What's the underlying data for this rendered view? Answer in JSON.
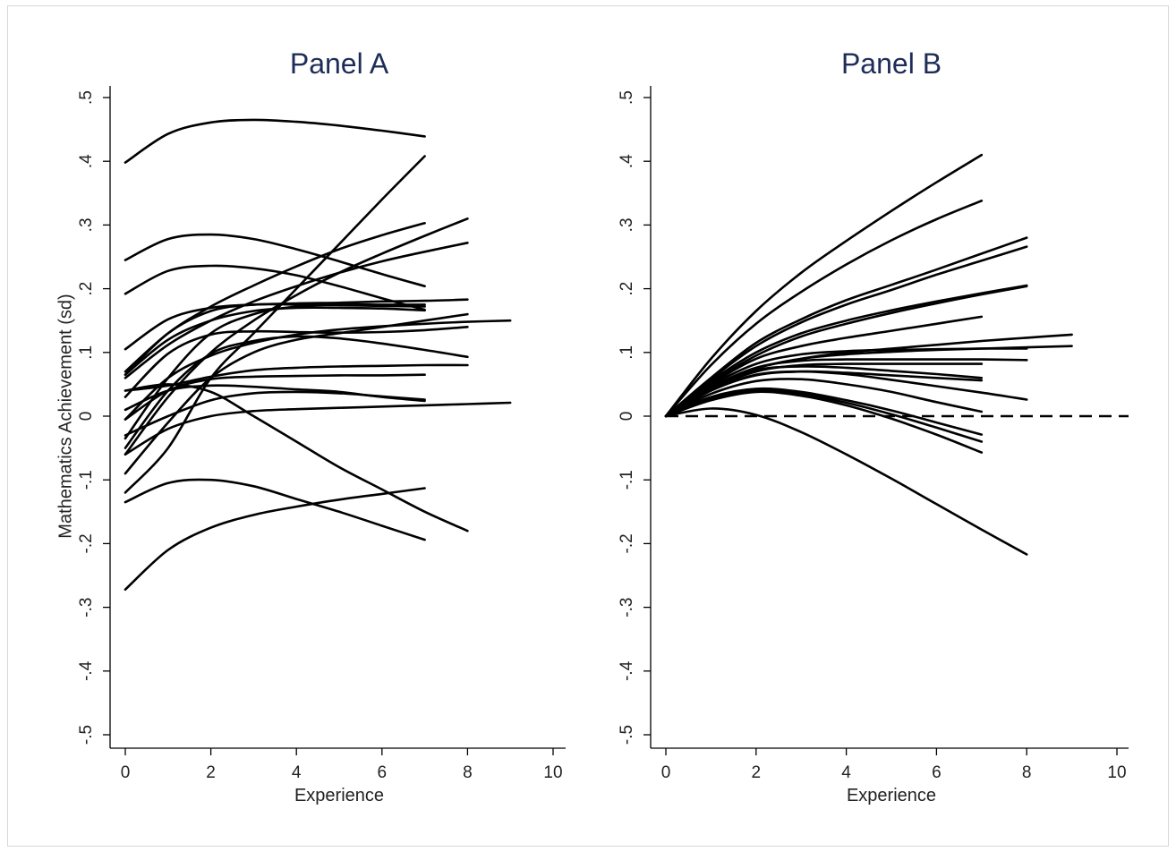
{
  "figure": {
    "background": "#ffffff"
  },
  "chart_data": [
    {
      "type": "line",
      "title": "Panel A",
      "xlabel": "Experience",
      "ylabel": "Mathematics Achievement (sd)",
      "xlim": [
        0,
        10
      ],
      "ylim": [
        -0.5,
        0.5
      ],
      "xticks": [
        0,
        2,
        4,
        6,
        8,
        10
      ],
      "yticks": [
        -0.5,
        -0.4,
        -0.3,
        -0.2,
        -0.1,
        0,
        0.1,
        0.2,
        0.3,
        0.4,
        0.5
      ],
      "ytick_labels": [
        "-.5",
        "-.4",
        "-.3",
        "-.2",
        "-.1",
        "0",
        ".1",
        ".2",
        ".3",
        ".4",
        ".5"
      ],
      "line_color": "#000000",
      "series": [
        {
          "x": [
            0,
            1,
            2,
            3,
            4,
            5,
            6,
            7
          ],
          "y": [
            0.398,
            0.443,
            0.461,
            0.465,
            0.462,
            0.456,
            0.448,
            0.439
          ]
        },
        {
          "x": [
            0,
            1,
            2,
            3,
            4,
            5,
            6,
            7
          ],
          "y": [
            0.245,
            0.278,
            0.285,
            0.278,
            0.262,
            0.243,
            0.223,
            0.204
          ]
        },
        {
          "x": [
            0,
            1,
            2,
            3,
            4,
            5,
            6,
            7
          ],
          "y": [
            0.192,
            0.228,
            0.236,
            0.232,
            0.221,
            0.204,
            0.185,
            0.167
          ]
        },
        {
          "x": [
            0,
            1,
            2,
            3,
            4,
            5,
            6,
            7
          ],
          "y": [
            -0.12,
            -0.05,
            0.06,
            0.13,
            0.2,
            0.27,
            0.34,
            0.408
          ]
        },
        {
          "x": [
            0,
            1,
            2,
            3,
            4,
            5,
            6,
            7,
            8
          ],
          "y": [
            -0.06,
            0.03,
            0.1,
            0.15,
            0.19,
            0.225,
            0.255,
            0.283,
            0.31
          ]
        },
        {
          "x": [
            0,
            1,
            2,
            3,
            4,
            5,
            6,
            7
          ],
          "y": [
            0.07,
            0.13,
            0.172,
            0.205,
            0.235,
            0.262,
            0.284,
            0.303
          ]
        },
        {
          "x": [
            0,
            1,
            2,
            3,
            4,
            5,
            6,
            7,
            8
          ],
          "y": [
            0.06,
            0.112,
            0.15,
            0.18,
            0.204,
            0.225,
            0.243,
            0.258,
            0.272
          ]
        },
        {
          "x": [
            0,
            1,
            2,
            3,
            4,
            5,
            6,
            7
          ],
          "y": [
            0.065,
            0.13,
            0.165,
            0.175,
            0.175,
            0.174,
            0.173,
            0.172
          ]
        },
        {
          "x": [
            0,
            1,
            2,
            3,
            4,
            5,
            6,
            7,
            8
          ],
          "y": [
            0.105,
            0.152,
            0.17,
            0.175,
            0.177,
            0.178,
            0.18,
            0.181,
            0.183
          ]
        },
        {
          "x": [
            0,
            1,
            2,
            3,
            4,
            5,
            6,
            7
          ],
          "y": [
            -0.035,
            0.06,
            0.13,
            0.16,
            0.172,
            0.175,
            0.175,
            0.175
          ]
        },
        {
          "x": [
            0,
            1,
            2,
            3,
            4,
            5,
            6,
            7
          ],
          "y": [
            0.065,
            0.12,
            0.15,
            0.165,
            0.17,
            0.17,
            0.169,
            0.166
          ]
        },
        {
          "x": [
            0,
            1,
            2,
            3,
            4,
            5,
            6,
            7,
            8,
            9
          ],
          "y": [
            -0.005,
            0.06,
            0.095,
            0.115,
            0.128,
            0.136,
            0.141,
            0.145,
            0.148,
            0.15
          ]
        },
        {
          "x": [
            0,
            1,
            2,
            3,
            4,
            5,
            6,
            7,
            8
          ],
          "y": [
            0.03,
            0.098,
            0.128,
            0.133,
            0.132,
            0.131,
            0.132,
            0.135,
            0.14
          ]
        },
        {
          "x": [
            0,
            1,
            2,
            3,
            4,
            5,
            6,
            7,
            8
          ],
          "y": [
            -0.09,
            -0.01,
            0.06,
            0.1,
            0.12,
            0.13,
            0.14,
            0.15,
            0.16
          ]
        },
        {
          "x": [
            0,
            1,
            2,
            3,
            4,
            5,
            6,
            7,
            8
          ],
          "y": [
            -0.05,
            0.04,
            0.098,
            0.118,
            0.125,
            0.122,
            0.114,
            0.104,
            0.093
          ]
        },
        {
          "x": [
            0,
            1,
            2,
            3,
            4,
            5,
            6,
            7,
            8
          ],
          "y": [
            0.04,
            0.048,
            0.062,
            0.072,
            0.076,
            0.078,
            0.079,
            0.08,
            0.08
          ]
        },
        {
          "x": [
            0,
            1,
            2,
            3,
            4,
            5,
            6,
            7
          ],
          "y": [
            -0.005,
            0.04,
            0.058,
            0.062,
            0.063,
            0.064,
            0.064,
            0.065
          ]
        },
        {
          "x": [
            0,
            1,
            2,
            3,
            4,
            5,
            6,
            7
          ],
          "y": [
            0.01,
            0.04,
            0.048,
            0.046,
            0.042,
            0.038,
            0.03,
            0.024
          ]
        },
        {
          "x": [
            0,
            1,
            2,
            3,
            4,
            5,
            6,
            7
          ],
          "y": [
            -0.03,
            0.0,
            0.025,
            0.036,
            0.038,
            0.036,
            0.031,
            0.026
          ]
        },
        {
          "x": [
            0,
            1,
            2,
            3,
            4,
            5,
            6,
            7,
            8,
            9
          ],
          "y": [
            -0.06,
            -0.02,
            0.0,
            0.008,
            0.011,
            0.013,
            0.015,
            0.017,
            0.019,
            0.021
          ]
        },
        {
          "x": [
            0,
            1,
            2,
            3,
            4,
            5,
            6,
            7,
            8
          ],
          "y": [
            0.04,
            0.05,
            0.038,
            0.0,
            -0.04,
            -0.08,
            -0.115,
            -0.15,
            -0.18
          ]
        },
        {
          "x": [
            0,
            1,
            2,
            3,
            4,
            5,
            6,
            7
          ],
          "y": [
            -0.135,
            -0.105,
            -0.1,
            -0.11,
            -0.13,
            -0.15,
            -0.172,
            -0.194
          ]
        },
        {
          "x": [
            0,
            1,
            2,
            3,
            4,
            5,
            6,
            7
          ],
          "y": [
            -0.272,
            -0.21,
            -0.175,
            -0.155,
            -0.142,
            -0.131,
            -0.122,
            -0.113
          ]
        }
      ]
    },
    {
      "type": "line",
      "title": "Panel B",
      "xlabel": "Experience",
      "ylabel": "",
      "xlim": [
        0,
        10
      ],
      "ylim": [
        -0.5,
        0.5
      ],
      "xticks": [
        0,
        2,
        4,
        6,
        8,
        10
      ],
      "yticks": [
        -0.5,
        -0.4,
        -0.3,
        -0.2,
        -0.1,
        0,
        0.1,
        0.2,
        0.3,
        0.4,
        0.5
      ],
      "ytick_labels": [
        "-.5",
        "-.4",
        "-.3",
        "-.2",
        "-.1",
        "0",
        ".1",
        ".2",
        ".3",
        ".4",
        ".5"
      ],
      "line_color": "#000000",
      "reference_line": {
        "y": 0,
        "style": "dashed"
      },
      "series": [
        {
          "x": [
            0,
            1,
            2,
            3,
            4,
            5,
            6,
            7
          ],
          "y": [
            0,
            0.09,
            0.165,
            0.225,
            0.275,
            0.322,
            0.367,
            0.41
          ]
        },
        {
          "x": [
            0,
            1,
            2,
            3,
            4,
            5,
            6,
            7
          ],
          "y": [
            0,
            0.08,
            0.145,
            0.195,
            0.238,
            0.276,
            0.309,
            0.338
          ]
        },
        {
          "x": [
            0,
            1,
            2,
            3,
            4,
            5,
            6,
            7,
            8
          ],
          "y": [
            0,
            0.06,
            0.115,
            0.152,
            0.182,
            0.206,
            0.23,
            0.255,
            0.28
          ]
        },
        {
          "x": [
            0,
            1,
            2,
            3,
            4,
            5,
            6,
            7,
            8
          ],
          "y": [
            0,
            0.058,
            0.11,
            0.147,
            0.175,
            0.198,
            0.222,
            0.244,
            0.266
          ]
        },
        {
          "x": [
            0,
            1,
            2,
            3,
            4,
            5,
            6,
            7,
            8
          ],
          "y": [
            0,
            0.055,
            0.1,
            0.13,
            0.15,
            0.166,
            0.18,
            0.193,
            0.205
          ]
        },
        {
          "x": [
            0,
            1,
            2,
            3,
            4,
            5,
            6,
            7,
            8
          ],
          "y": [
            0,
            0.052,
            0.095,
            0.125,
            0.145,
            0.162,
            0.177,
            0.191,
            0.204
          ]
        },
        {
          "x": [
            0,
            1,
            2,
            3,
            4,
            5,
            6,
            7
          ],
          "y": [
            0,
            0.05,
            0.09,
            0.11,
            0.123,
            0.134,
            0.145,
            0.156
          ]
        },
        {
          "x": [
            0,
            1,
            2,
            3,
            4,
            5,
            6,
            7,
            8,
            9
          ],
          "y": [
            0,
            0.045,
            0.075,
            0.09,
            0.1,
            0.106,
            0.112,
            0.118,
            0.123,
            0.128
          ]
        },
        {
          "x": [
            0,
            1,
            2,
            3,
            4,
            5,
            6,
            7,
            8,
            9
          ],
          "y": [
            0,
            0.045,
            0.075,
            0.09,
            0.097,
            0.101,
            0.104,
            0.106,
            0.108,
            0.11
          ]
        },
        {
          "x": [
            0,
            1,
            2,
            3,
            4,
            5,
            6,
            7,
            8
          ],
          "y": [
            0,
            0.048,
            0.082,
            0.097,
            0.102,
            0.104,
            0.105,
            0.106,
            0.106
          ]
        },
        {
          "x": [
            0,
            1,
            2,
            3,
            4,
            5,
            6,
            7,
            8
          ],
          "y": [
            0,
            0.045,
            0.076,
            0.087,
            0.089,
            0.089,
            0.089,
            0.089,
            0.088
          ]
        },
        {
          "x": [
            0,
            1,
            2,
            3,
            4,
            5,
            6,
            7
          ],
          "y": [
            0,
            0.042,
            0.07,
            0.08,
            0.082,
            0.082,
            0.082,
            0.082
          ]
        },
        {
          "x": [
            0,
            1,
            2,
            3,
            4,
            5,
            6,
            7
          ],
          "y": [
            0,
            0.045,
            0.072,
            0.078,
            0.076,
            0.071,
            0.066,
            0.06
          ]
        },
        {
          "x": [
            0,
            1,
            2,
            3,
            4,
            5,
            6,
            7
          ],
          "y": [
            0,
            0.04,
            0.064,
            0.07,
            0.068,
            0.064,
            0.06,
            0.056
          ]
        },
        {
          "x": [
            0,
            1,
            2,
            3,
            4,
            5,
            6,
            7,
            8
          ],
          "y": [
            0,
            0.04,
            0.065,
            0.07,
            0.066,
            0.057,
            0.047,
            0.037,
            0.026
          ]
        },
        {
          "x": [
            0,
            1,
            2,
            3,
            4,
            5,
            6,
            7
          ],
          "y": [
            0,
            0.035,
            0.055,
            0.058,
            0.05,
            0.038,
            0.022,
            0.007
          ]
        },
        {
          "x": [
            0,
            1,
            2,
            3,
            4,
            5,
            6,
            7
          ],
          "y": [
            0,
            0.03,
            0.043,
            0.038,
            0.025,
            0.009,
            -0.01,
            -0.029
          ]
        },
        {
          "x": [
            0,
            1,
            2,
            3,
            4,
            5,
            6,
            7
          ],
          "y": [
            0,
            0.028,
            0.04,
            0.035,
            0.021,
            0.003,
            -0.018,
            -0.04
          ]
        },
        {
          "x": [
            0,
            1,
            2,
            3,
            4,
            5,
            6,
            7
          ],
          "y": [
            0,
            0.025,
            0.038,
            0.032,
            0.017,
            -0.004,
            -0.029,
            -0.057
          ]
        },
        {
          "x": [
            0,
            1,
            2,
            3,
            4,
            5,
            6,
            7,
            8
          ],
          "y": [
            0,
            0.012,
            0.002,
            -0.025,
            -0.06,
            -0.098,
            -0.138,
            -0.178,
            -0.217
          ]
        }
      ]
    }
  ]
}
